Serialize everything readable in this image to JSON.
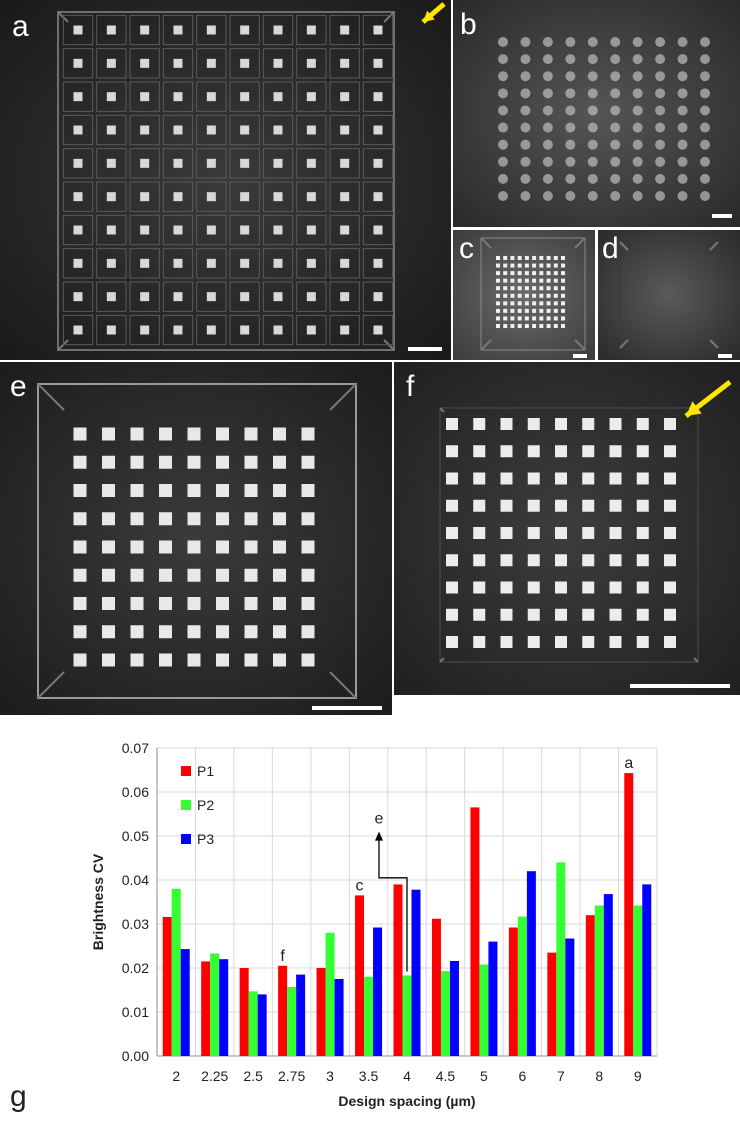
{
  "panels": {
    "a": {
      "label": "a"
    },
    "b": {
      "label": "b"
    },
    "c": {
      "label": "c"
    },
    "d": {
      "label": "d"
    },
    "e": {
      "label": "e"
    },
    "f": {
      "label": "f"
    },
    "g": {
      "label": "g"
    }
  },
  "colors": {
    "p1": "#ff0000",
    "p2": "#33ff33",
    "p3": "#0000ff",
    "arrow": "#ffe600"
  },
  "chart_data": {
    "type": "bar",
    "title": "",
    "xlabel": "Design spacing (µm)",
    "ylabel": "Brightness CV",
    "ylim": [
      0,
      0.07
    ],
    "yticks": [
      "0.00",
      "0.01",
      "0.02",
      "0.03",
      "0.04",
      "0.05",
      "0.06",
      "0.07"
    ],
    "grid": true,
    "legend_position": "top-left",
    "categories": [
      "2",
      "2.25",
      "2.5",
      "2.75",
      "3",
      "3.5",
      "4",
      "4.5",
      "5",
      "6",
      "7",
      "8",
      "9"
    ],
    "series": [
      {
        "name": "P1",
        "values": [
          0.0316,
          0.0215,
          0.02,
          0.0205,
          0.02,
          0.0365,
          0.039,
          0.0312,
          0.0565,
          0.0292,
          0.0235,
          0.032,
          0.0643
        ]
      },
      {
        "name": "P2",
        "values": [
          0.038,
          0.0233,
          0.0147,
          0.0157,
          0.028,
          0.018,
          0.0183,
          0.0193,
          0.0208,
          0.0317,
          0.044,
          0.0342,
          0.0342
        ]
      },
      {
        "name": "P3",
        "values": [
          0.0243,
          0.022,
          0.014,
          0.0185,
          0.0175,
          0.0292,
          0.0378,
          0.0216,
          0.026,
          0.042,
          0.0267,
          0.0368,
          0.039
        ]
      }
    ],
    "annotations": [
      {
        "text": "a",
        "category": "9"
      },
      {
        "text": "c",
        "category": "3.5"
      },
      {
        "text": "e",
        "category": "4"
      },
      {
        "text": "f",
        "category": "2.75"
      }
    ]
  }
}
